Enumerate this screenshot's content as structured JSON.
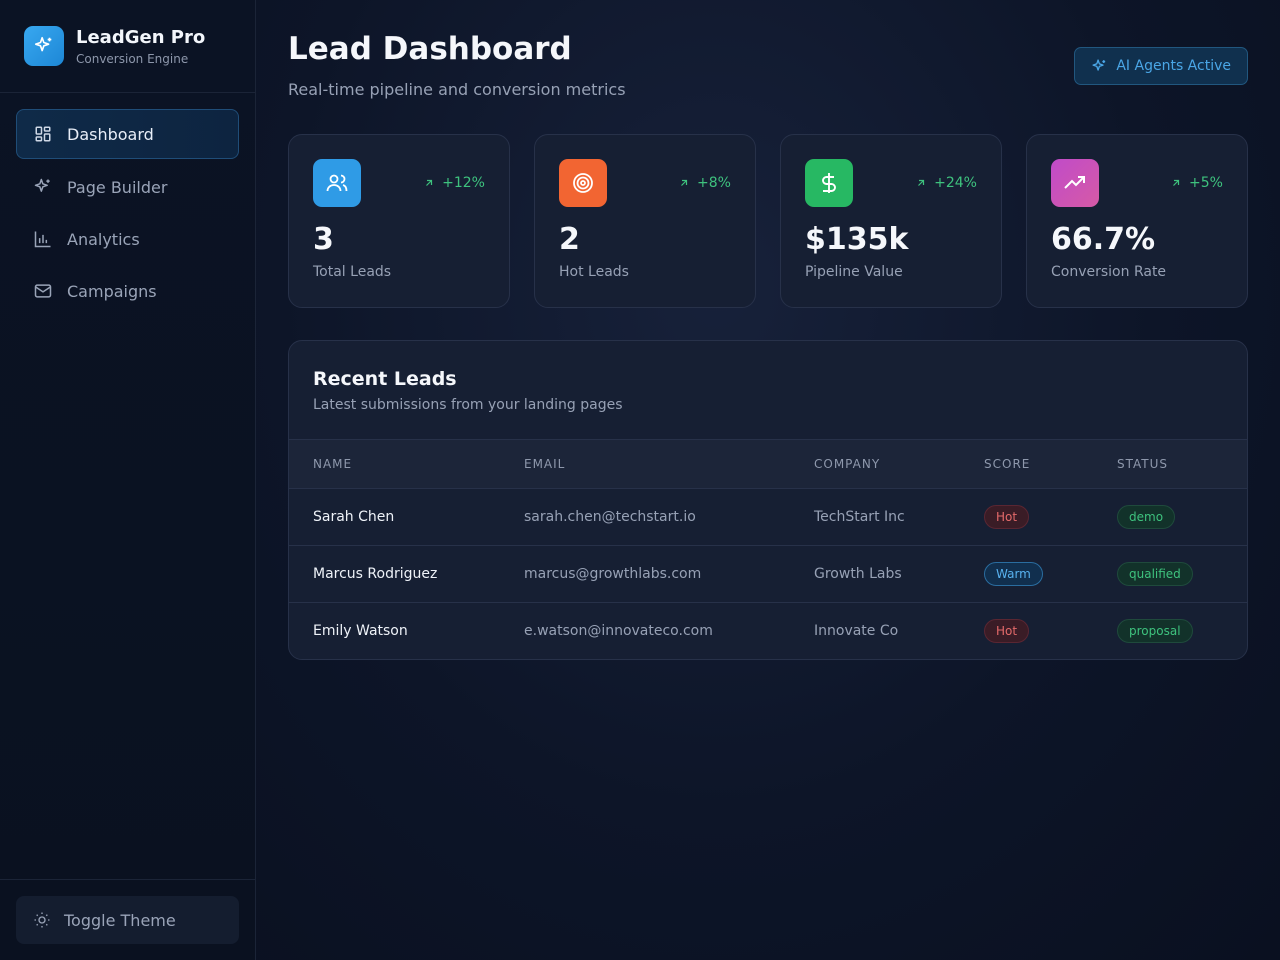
{
  "sidebar": {
    "brand_name": "LeadGen Pro",
    "brand_sub": "Conversion Engine",
    "items": [
      {
        "label": "Dashboard",
        "icon": "dashboard-icon",
        "active": true
      },
      {
        "label": "Page Builder",
        "icon": "sparkles-icon",
        "active": false
      },
      {
        "label": "Analytics",
        "icon": "bar-chart-icon",
        "active": false
      },
      {
        "label": "Campaigns",
        "icon": "mail-icon",
        "active": false
      }
    ],
    "toggle_theme": "Toggle Theme"
  },
  "header": {
    "title": "Lead Dashboard",
    "subtitle": "Real-time pipeline and conversion metrics",
    "ai_badge": "AI Agents Active"
  },
  "stats": [
    {
      "value": "3",
      "label": "Total Leads",
      "change": "+12%",
      "icon": "users-icon",
      "color": "#2f9be6"
    },
    {
      "value": "2",
      "label": "Hot Leads",
      "change": "+8%",
      "icon": "target-icon",
      "color": "#f26532"
    },
    {
      "value": "$135k",
      "label": "Pipeline Value",
      "change": "+24%",
      "icon": "dollar-icon",
      "color": "#27b863"
    },
    {
      "value": "66.7%",
      "label": "Conversion Rate",
      "change": "+5%",
      "icon": "trending-up-icon",
      "color": "#c04bc9"
    }
  ],
  "leads": {
    "title": "Recent Leads",
    "subtitle": "Latest submissions from your landing pages",
    "columns": [
      "NAME",
      "EMAIL",
      "COMPANY",
      "SCORE",
      "STATUS"
    ],
    "rows": [
      {
        "name": "Sarah Chen",
        "email": "sarah.chen@techstart.io",
        "company": "TechStart Inc",
        "score": "Hot",
        "status": "demo"
      },
      {
        "name": "Marcus Rodriguez",
        "email": "marcus@growthlabs.com",
        "company": "Growth Labs",
        "score": "Warm",
        "status": "qualified"
      },
      {
        "name": "Emily Watson",
        "email": "e.watson@innovateco.com",
        "company": "Innovate Co",
        "score": "Hot",
        "status": "proposal"
      }
    ]
  }
}
